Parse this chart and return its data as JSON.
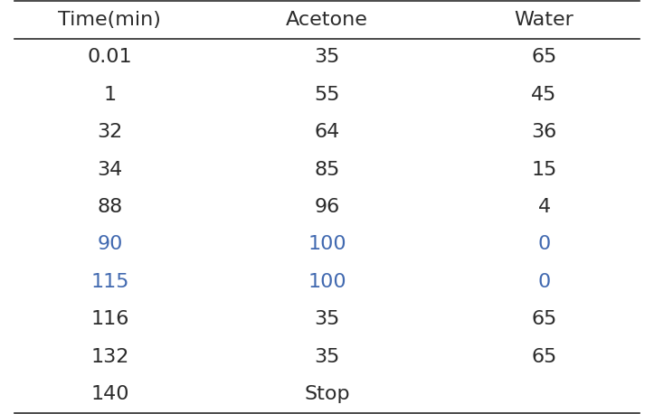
{
  "columns": [
    "Time(min)",
    "Acetone",
    "Water"
  ],
  "rows": [
    [
      "0.01",
      "35",
      "65"
    ],
    [
      "1",
      "55",
      "45"
    ],
    [
      "32",
      "64",
      "36"
    ],
    [
      "34",
      "85",
      "15"
    ],
    [
      "88",
      "96",
      "4"
    ],
    [
      "90",
      "100",
      "0"
    ],
    [
      "115",
      "100",
      "0"
    ],
    [
      "116",
      "35",
      "65"
    ],
    [
      "132",
      "35",
      "65"
    ],
    [
      "140",
      "Stop",
      ""
    ]
  ],
  "row_colors": [
    [
      "#2b2b2b",
      "#2b2b2b",
      "#2b2b2b"
    ],
    [
      "#2b2b2b",
      "#2b2b2b",
      "#2b2b2b"
    ],
    [
      "#2b2b2b",
      "#2b2b2b",
      "#2b2b2b"
    ],
    [
      "#2b2b2b",
      "#2b2b2b",
      "#2b2b2b"
    ],
    [
      "#2b2b2b",
      "#2b2b2b",
      "#2b2b2b"
    ],
    [
      "#4169b0",
      "#4169b0",
      "#4169b0"
    ],
    [
      "#4169b0",
      "#4169b0",
      "#4169b0"
    ],
    [
      "#2b2b2b",
      "#2b2b2b",
      "#2b2b2b"
    ],
    [
      "#2b2b2b",
      "#2b2b2b",
      "#2b2b2b"
    ],
    [
      "#2b2b2b",
      "#2b2b2b",
      "#2b2b2b"
    ]
  ],
  "header_color": "#2b2b2b",
  "background_color": "#ffffff",
  "font_size": 16,
  "header_font_size": 16,
  "figsize": [
    7.23,
    4.58
  ],
  "dpi": 100,
  "line_color": "#2b2b2b",
  "line_lw": 1.2
}
